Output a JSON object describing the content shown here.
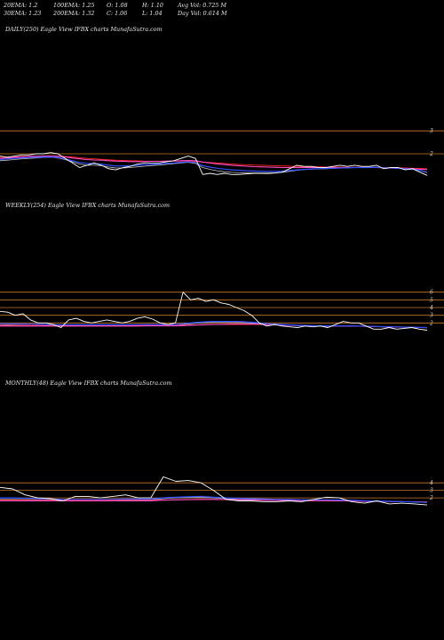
{
  "header": {
    "row1": [
      {
        "text": "20EMA: 1.2"
      },
      {
        "text": "100EMA: 1.25"
      },
      {
        "text": "O: 1.08"
      },
      {
        "text": "H: 1.10"
      },
      {
        "text": "Avg Vol: 0.725  M"
      }
    ],
    "row2": [
      {
        "text": "30EMA: 1.23"
      },
      {
        "text": "200EMA: 1.32"
      },
      {
        "text": "C: 1.06"
      },
      {
        "text": "L: 1.04"
      },
      {
        "text": "Day Vol: 0.614  M"
      }
    ]
  },
  "panels": [
    {
      "title": "DAILY(250) Eagle   View  IFBX  charts MunafaSutra.com"
    },
    {
      "title": "WEEKLY(254) Eagle   View  IFBX  charts MunafaSutra.com"
    },
    {
      "title": "MONTHLY(48) Eagle   View  IFBX  charts MunafaSutra.com"
    }
  ],
  "colors": {
    "price": "#ffffff",
    "ema_blue": "#2f4fff",
    "ema_pink": "#ff4fc8",
    "ema_red": "#ff2020",
    "ema_gray": "#c0c0c0",
    "grid": "#c87a2a"
  },
  "chart_data": [
    {
      "type": "line",
      "title": "DAILY(250) Eagle   View  IFBX  charts MunafaSutra.com",
      "y_ticks": [
        "3",
        "2"
      ],
      "ylim": [
        0.8,
        3.2
      ],
      "grid_levels": [
        3,
        2
      ],
      "series": [
        {
          "role": "price",
          "values": [
            1.9,
            1.85,
            1.9,
            1.95,
            1.95,
            2.0,
            2.0,
            2.05,
            2.0,
            1.8,
            1.6,
            1.4,
            1.5,
            1.6,
            1.5,
            1.35,
            1.3,
            1.4,
            1.45,
            1.55,
            1.6,
            1.6,
            1.6,
            1.65,
            1.7,
            1.8,
            1.9,
            1.8,
            1.1,
            1.15,
            1.1,
            1.15,
            1.1,
            1.1,
            1.12,
            1.15,
            1.15,
            1.14,
            1.16,
            1.2,
            1.35,
            1.5,
            1.45,
            1.45,
            1.4,
            1.4,
            1.45,
            1.5,
            1.45,
            1.5,
            1.45,
            1.45,
            1.5,
            1.35,
            1.4,
            1.4,
            1.3,
            1.35,
            1.2,
            1.06
          ]
        },
        {
          "role": "ema_blue",
          "values": [
            1.75,
            1.78,
            1.8,
            1.82,
            1.84,
            1.85,
            1.86,
            1.86,
            1.84,
            1.78,
            1.7,
            1.62,
            1.58,
            1.57,
            1.55,
            1.5,
            1.47,
            1.47,
            1.48,
            1.5,
            1.52,
            1.54,
            1.56,
            1.58,
            1.6,
            1.63,
            1.65,
            1.62,
            1.48,
            1.42,
            1.37,
            1.33,
            1.3,
            1.28,
            1.26,
            1.25,
            1.24,
            1.23,
            1.23,
            1.24,
            1.27,
            1.3,
            1.32,
            1.34,
            1.35,
            1.36,
            1.37,
            1.38,
            1.39,
            1.4,
            1.4,
            1.4,
            1.41,
            1.39,
            1.38,
            1.37,
            1.35,
            1.33,
            1.28,
            1.2
          ]
        },
        {
          "role": "ema_pink",
          "values": [
            1.8,
            1.82,
            1.84,
            1.86,
            1.88,
            1.89,
            1.9,
            1.9,
            1.89,
            1.86,
            1.82,
            1.78,
            1.75,
            1.73,
            1.72,
            1.7,
            1.68,
            1.67,
            1.66,
            1.66,
            1.66,
            1.67,
            1.67,
            1.68,
            1.69,
            1.7,
            1.71,
            1.7,
            1.64,
            1.6,
            1.56,
            1.53,
            1.5,
            1.48,
            1.46,
            1.44,
            1.43,
            1.42,
            1.41,
            1.4,
            1.4,
            1.4,
            1.4,
            1.4,
            1.4,
            1.4,
            1.4,
            1.4,
            1.4,
            1.4,
            1.4,
            1.4,
            1.4,
            1.39,
            1.38,
            1.37,
            1.36,
            1.35,
            1.33,
            1.31
          ]
        },
        {
          "role": "ema_red",
          "values": [
            1.85,
            1.86,
            1.87,
            1.88,
            1.89,
            1.9,
            1.9,
            1.9,
            1.9,
            1.88,
            1.86,
            1.83,
            1.8,
            1.78,
            1.76,
            1.74,
            1.72,
            1.71,
            1.7,
            1.69,
            1.68,
            1.68,
            1.68,
            1.68,
            1.68,
            1.68,
            1.68,
            1.67,
            1.64,
            1.62,
            1.6,
            1.58,
            1.56,
            1.54,
            1.52,
            1.51,
            1.5,
            1.49,
            1.48,
            1.47,
            1.46,
            1.45,
            1.44,
            1.43,
            1.43,
            1.42,
            1.42,
            1.42,
            1.41,
            1.41,
            1.41,
            1.4,
            1.4,
            1.4,
            1.39,
            1.39,
            1.38,
            1.37,
            1.36,
            1.35
          ]
        },
        {
          "role": "ema_gray",
          "values": [
            1.7,
            1.72,
            1.75,
            1.78,
            1.8,
            1.82,
            1.84,
            1.85,
            1.82,
            1.75,
            1.65,
            1.55,
            1.5,
            1.5,
            1.48,
            1.42,
            1.38,
            1.38,
            1.4,
            1.43,
            1.46,
            1.49,
            1.51,
            1.54,
            1.57,
            1.6,
            1.63,
            1.58,
            1.4,
            1.32,
            1.26,
            1.22,
            1.19,
            1.17,
            1.16,
            1.16,
            1.16,
            1.16,
            1.17,
            1.19,
            1.23,
            1.28,
            1.31,
            1.33,
            1.34,
            1.35,
            1.36,
            1.38,
            1.39,
            1.4,
            1.41,
            1.41,
            1.42,
            1.39,
            1.38,
            1.37,
            1.34,
            1.32,
            1.27,
            1.18
          ]
        }
      ]
    },
    {
      "type": "line",
      "title": "WEEKLY(254) Eagle   View  IFBX  charts MunafaSutra.com",
      "y_ticks": [
        "6",
        "5",
        "4",
        "3",
        "2"
      ],
      "ylim": [
        1.0,
        7.0
      ],
      "grid_levels": [
        6,
        5,
        4,
        3,
        2
      ],
      "series": [
        {
          "role": "price",
          "values": [
            3.5,
            3.4,
            3.0,
            3.2,
            2.4,
            2.0,
            2.0,
            1.8,
            1.4,
            2.4,
            2.6,
            2.2,
            2.0,
            2.2,
            2.4,
            2.2,
            2.0,
            2.2,
            2.6,
            2.8,
            2.5,
            2.0,
            1.8,
            2.0,
            6.0,
            5.0,
            5.2,
            4.8,
            5.0,
            4.6,
            4.4,
            4.0,
            3.6,
            3.0,
            2.0,
            1.6,
            1.8,
            1.6,
            1.5,
            1.4,
            1.6,
            1.5,
            1.6,
            1.4,
            1.8,
            2.2,
            2.0,
            2.0,
            1.6,
            1.2,
            1.2,
            1.4,
            1.2,
            1.3,
            1.4,
            1.2,
            1.06
          ]
        },
        {
          "role": "ema_blue",
          "values": [
            1.9,
            1.9,
            1.88,
            1.86,
            1.84,
            1.82,
            1.8,
            1.78,
            1.76,
            1.76,
            1.76,
            1.76,
            1.76,
            1.76,
            1.76,
            1.76,
            1.76,
            1.76,
            1.78,
            1.8,
            1.8,
            1.8,
            1.8,
            1.8,
            1.9,
            2.0,
            2.1,
            2.15,
            2.2,
            2.2,
            2.2,
            2.2,
            2.15,
            2.1,
            2.0,
            1.9,
            1.85,
            1.8,
            1.75,
            1.7,
            1.68,
            1.66,
            1.64,
            1.62,
            1.62,
            1.62,
            1.62,
            1.6,
            1.58,
            1.55,
            1.52,
            1.5,
            1.48,
            1.46,
            1.44,
            1.42,
            1.4
          ]
        },
        {
          "role": "ema_pink",
          "values": [
            1.6,
            1.6,
            1.6,
            1.6,
            1.6,
            1.6,
            1.6,
            1.6,
            1.6,
            1.6,
            1.6,
            1.6,
            1.6,
            1.6,
            1.6,
            1.6,
            1.6,
            1.6,
            1.6,
            1.62,
            1.62,
            1.62,
            1.62,
            1.62,
            1.66,
            1.7,
            1.74,
            1.78,
            1.8,
            1.82,
            1.84,
            1.86,
            1.86,
            1.86,
            1.84,
            1.8,
            1.76,
            1.72,
            1.7,
            1.68,
            1.66,
            1.64,
            1.62,
            1.6,
            1.6,
            1.6,
            1.6,
            1.58,
            1.56,
            1.54,
            1.52,
            1.5,
            1.48,
            1.46,
            1.44,
            1.42,
            1.4
          ]
        },
        {
          "role": "ema_red",
          "values": [
            1.7,
            1.7,
            1.7,
            1.7,
            1.7,
            1.7,
            1.7,
            1.7,
            1.7,
            1.7,
            1.7,
            1.7,
            1.7,
            1.7,
            1.7,
            1.7,
            1.7,
            1.7,
            1.7,
            1.7,
            1.7,
            1.7,
            1.7,
            1.7,
            1.72,
            1.74,
            1.76,
            1.78,
            1.8,
            1.8,
            1.8,
            1.8,
            1.8,
            1.8,
            1.8,
            1.78,
            1.76,
            1.74,
            1.72,
            1.7,
            1.68,
            1.66,
            1.64,
            1.62,
            1.6,
            1.6,
            1.58,
            1.56,
            1.54,
            1.52,
            1.5,
            1.48,
            1.46,
            1.44,
            1.42,
            1.4,
            1.38
          ]
        },
        {
          "role": "ema_gray",
          "values": [
            1.75,
            1.76,
            1.74,
            1.72,
            1.7,
            1.7,
            1.68,
            1.66,
            1.64,
            1.64,
            1.64,
            1.64,
            1.64,
            1.64,
            1.64,
            1.64,
            1.64,
            1.64,
            1.66,
            1.68,
            1.68,
            1.68,
            1.68,
            1.68,
            1.8,
            1.9,
            2.0,
            2.05,
            2.1,
            2.1,
            2.1,
            2.1,
            2.05,
            2.0,
            1.9,
            1.82,
            1.78,
            1.74,
            1.7,
            1.66,
            1.64,
            1.62,
            1.6,
            1.58,
            1.58,
            1.6,
            1.6,
            1.58,
            1.56,
            1.52,
            1.5,
            1.48,
            1.46,
            1.44,
            1.42,
            1.4,
            1.38
          ]
        }
      ]
    },
    {
      "type": "line",
      "title": "MONTHLY(48) Eagle   View  IFBX  charts MunafaSutra.com",
      "y_ticks": [
        "4",
        "3",
        "2"
      ],
      "ylim": [
        0.6,
        5.2
      ],
      "grid_levels": [
        4,
        3,
        2
      ],
      "series": [
        {
          "role": "price",
          "values": [
            3.4,
            3.2,
            2.4,
            2.0,
            1.9,
            1.6,
            2.2,
            2.2,
            2.0,
            2.2,
            2.4,
            2.0,
            2.0,
            4.8,
            4.2,
            4.3,
            4.0,
            3.0,
            1.8,
            1.6,
            1.6,
            1.5,
            1.5,
            1.6,
            1.5,
            1.8,
            2.1,
            2.0,
            1.5,
            1.3,
            1.6,
            1.2,
            1.3,
            1.2,
            1.06
          ]
        },
        {
          "role": "ema_blue",
          "values": [
            2.0,
            2.0,
            1.95,
            1.9,
            1.85,
            1.8,
            1.8,
            1.8,
            1.8,
            1.82,
            1.85,
            1.85,
            1.85,
            2.0,
            2.1,
            2.15,
            2.2,
            2.1,
            2.0,
            1.95,
            1.9,
            1.85,
            1.8,
            1.8,
            1.75,
            1.75,
            1.75,
            1.72,
            1.68,
            1.62,
            1.58,
            1.54,
            1.5,
            1.46,
            1.4
          ]
        },
        {
          "role": "ema_pink",
          "values": [
            1.6,
            1.6,
            1.6,
            1.6,
            1.6,
            1.6,
            1.6,
            1.6,
            1.6,
            1.6,
            1.62,
            1.62,
            1.62,
            1.7,
            1.75,
            1.78,
            1.8,
            1.8,
            1.78,
            1.75,
            1.72,
            1.7,
            1.68,
            1.66,
            1.64,
            1.64,
            1.64,
            1.62,
            1.6,
            1.56,
            1.54,
            1.52,
            1.5,
            1.48,
            1.45
          ]
        },
        {
          "role": "ema_red",
          "values": [
            1.7,
            1.7,
            1.7,
            1.7,
            1.7,
            1.7,
            1.7,
            1.7,
            1.7,
            1.7,
            1.7,
            1.7,
            1.7,
            1.72,
            1.74,
            1.76,
            1.78,
            1.78,
            1.76,
            1.74,
            1.72,
            1.7,
            1.68,
            1.66,
            1.64,
            1.62,
            1.6,
            1.6,
            1.58,
            1.56,
            1.54,
            1.52,
            1.5,
            1.48,
            1.46
          ]
        },
        {
          "role": "ema_gray",
          "values": [
            1.8,
            1.8,
            1.78,
            1.75,
            1.72,
            1.7,
            1.7,
            1.7,
            1.7,
            1.72,
            1.74,
            1.74,
            1.74,
            1.9,
            2.0,
            2.05,
            2.1,
            2.0,
            1.9,
            1.85,
            1.8,
            1.76,
            1.72,
            1.7,
            1.68,
            1.68,
            1.7,
            1.68,
            1.64,
            1.6,
            1.56,
            1.52,
            1.48,
            1.45,
            1.4
          ]
        }
      ]
    }
  ]
}
